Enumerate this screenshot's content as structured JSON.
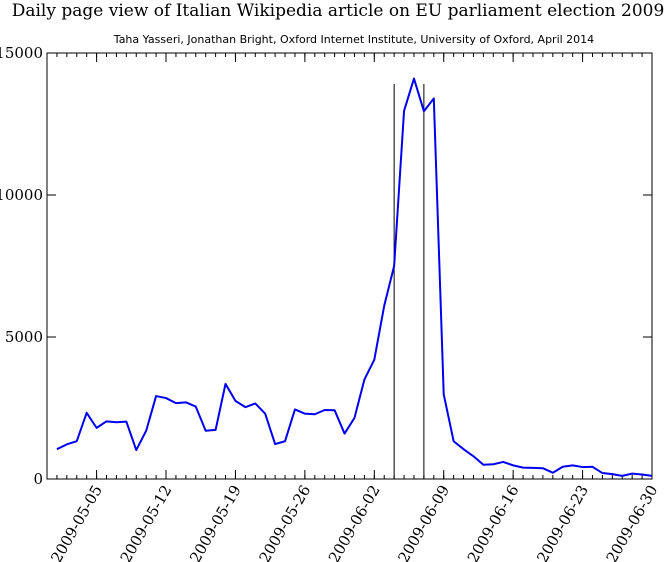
{
  "chart_data": {
    "type": "line",
    "title": "Daily page view of Italian Wikipedia article on EU parliament election 2009",
    "subtitle": "Taha Yasseri, Jonathan Bright, Oxford Internet Institute, University of Oxford, April 2014",
    "xlabel": "",
    "ylabel": "",
    "x_start": "2009-05-01",
    "xlim": [
      "2009-04-30",
      "2009-06-30"
    ],
    "ylim": [
      0,
      15000
    ],
    "yticks": [
      0,
      5000,
      10000,
      15000
    ],
    "xtick_labels": [
      "2009-05-05",
      "2009-05-12",
      "2009-05-19",
      "2009-05-26",
      "2009-06-02",
      "2009-06-09",
      "2009-06-16",
      "2009-06-23",
      "2009-06-30"
    ],
    "grid": false,
    "legend": "none",
    "colors": {
      "line": "#0000ee",
      "marker_lines": "#000000"
    },
    "vlines": [
      "2009-06-04",
      "2009-06-07"
    ],
    "series": [
      {
        "values": [
          1050,
          1220,
          1330,
          2330,
          1800,
          2030,
          2000,
          2020,
          1020,
          1700,
          2920,
          2850,
          2670,
          2700,
          2550,
          1700,
          1730,
          3350,
          2750,
          2530,
          2660,
          2300,
          1230,
          1330,
          2450,
          2300,
          2280,
          2430,
          2420,
          1600,
          2150,
          3500,
          4200,
          6100,
          7500,
          12960,
          14100,
          12950,
          13400,
          2980,
          1330,
          1050,
          800,
          500,
          520,
          600,
          480,
          400,
          390,
          380,
          220,
          430,
          480,
          420,
          430,
          210,
          170,
          110,
          190,
          160,
          110
        ]
      }
    ]
  }
}
